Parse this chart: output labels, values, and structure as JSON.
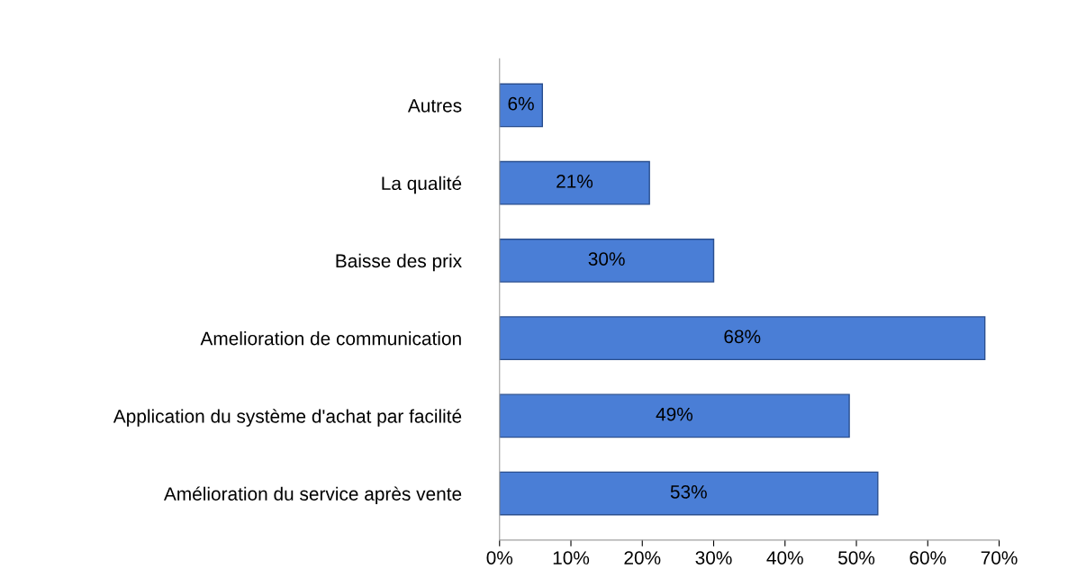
{
  "chart_data": {
    "type": "bar",
    "orientation": "horizontal",
    "categories": [
      "Autres",
      "La qualité",
      "Baisse des prix",
      "Amelioration de communication",
      "Application du système d'achat par facilité",
      "Amélioration du service après vente"
    ],
    "values": [
      6,
      21,
      30,
      68,
      49,
      53
    ],
    "value_labels": [
      "6%",
      "21%",
      "30%",
      "68%",
      "49%",
      "53%"
    ],
    "color": "#4a7ed6",
    "xlim": [
      0,
      70
    ],
    "xticks": [
      {
        "value": 0,
        "label": "0%"
      },
      {
        "value": 10,
        "label": "10%"
      },
      {
        "value": 20,
        "label": "20%"
      },
      {
        "value": 30,
        "label": "30%"
      },
      {
        "value": 40,
        "label": "40%"
      },
      {
        "value": 50,
        "label": "50%"
      },
      {
        "value": 60,
        "label": "60%"
      },
      {
        "value": 70,
        "label": "70%"
      }
    ],
    "grid": false,
    "legend": false
  }
}
